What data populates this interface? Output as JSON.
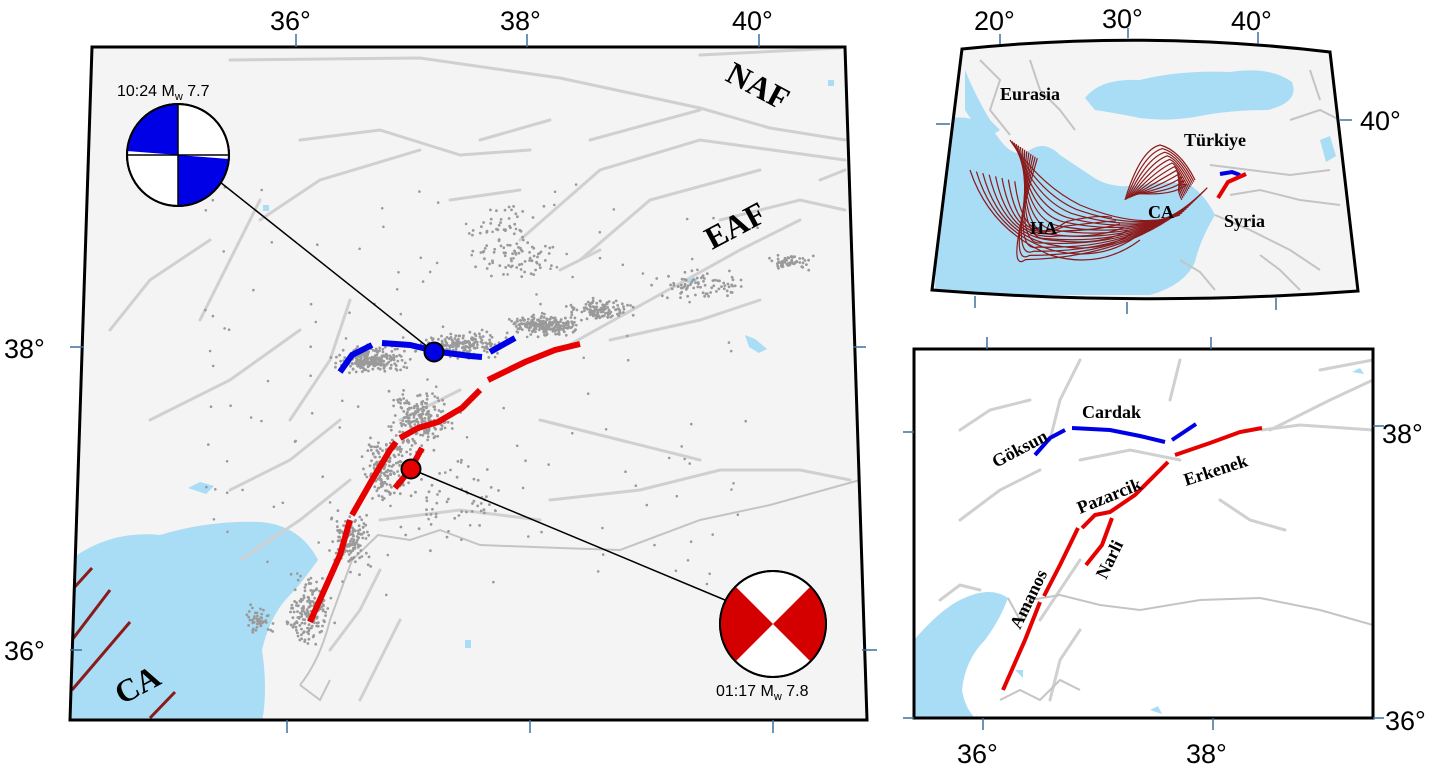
{
  "main_map": {
    "lon_ticks": [
      "36°",
      "38°",
      "40°"
    ],
    "lat_ticks": [
      "38°",
      "36°"
    ],
    "fault_labels": {
      "naf": "NAF",
      "eaf": "EAF",
      "ca": "CA"
    },
    "events": [
      {
        "time": "10:24",
        "mag_prefix": "M",
        "mag_sub": "w",
        "mag_value": "7.7",
        "color": "#0000e6"
      },
      {
        "time": "01:17",
        "mag_prefix": "M",
        "mag_sub": "w",
        "mag_value": "7.8",
        "color": "#e60000"
      }
    ]
  },
  "inset_regional": {
    "lon_ticks": [
      "20°",
      "30°",
      "40°"
    ],
    "lat_ticks": [
      "40°"
    ],
    "labels": {
      "eurasia": "Eurasia",
      "turkiye": "Türkiye",
      "ha": "HA",
      "ca": "CA",
      "syria": "Syria"
    }
  },
  "inset_faults": {
    "lon_ticks": [
      "36°",
      "38°"
    ],
    "lat_ticks": [
      "38°",
      "36°"
    ],
    "segment_labels": {
      "goksun": "Göksun",
      "cardak": "Cardak",
      "pazarcik": "Pazarcik",
      "erkenek": "Erkenek",
      "amanos": "Amanos",
      "narli": "Narli"
    }
  },
  "colors": {
    "water": "#a9dcf5",
    "faults": "#d0d0d0",
    "seismicity": "#9a9a9a",
    "rupture_1": "#e60000",
    "rupture_2": "#0000e6",
    "contours": "#8b1a1a"
  }
}
